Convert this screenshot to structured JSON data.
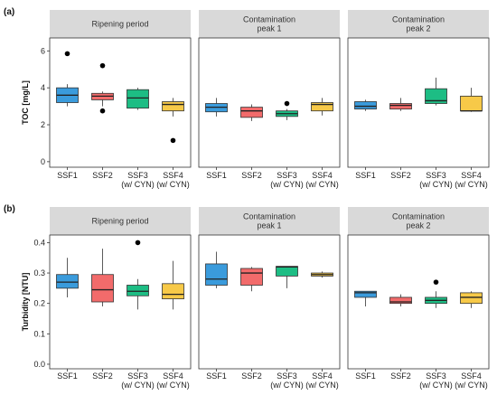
{
  "colors": {
    "SSF1": "#3a9bdc",
    "SSF2": "#f26b6b",
    "SSF3": "#1dbd84",
    "SSF4": "#f7c948",
    "strip": "#d9d9d9"
  },
  "chart_data": [
    {
      "type": "boxplot",
      "tag": "(a)",
      "ylabel": "TOC [mg/L]",
      "ylim": [
        -0.3,
        6.7
      ],
      "yticks": [
        "0",
        "2",
        "4",
        "6"
      ],
      "categories": [
        [
          "SSF1"
        ],
        [
          "SSF2"
        ],
        [
          "SSF3",
          "(w/ CYN)"
        ],
        [
          "SSF4",
          "(w/ CYN)"
        ]
      ],
      "facets": [
        {
          "title": [
            "Ripening period"
          ],
          "boxes": [
            {
              "whislo": 3.0,
              "q1": 3.2,
              "med": 3.6,
              "q3": 4.0,
              "whishi": 4.2,
              "fliers": [
                5.85
              ]
            },
            {
              "whislo": 3.0,
              "q1": 3.35,
              "med": 3.55,
              "q3": 3.7,
              "whishi": 3.8,
              "fliers": [
                5.2,
                2.75
              ]
            },
            {
              "whislo": 2.8,
              "q1": 2.9,
              "med": 3.45,
              "q3": 3.9,
              "whishi": 4.0,
              "fliers": []
            },
            {
              "whislo": 2.45,
              "q1": 2.75,
              "med": 3.1,
              "q3": 3.25,
              "whishi": 3.45,
              "fliers": [
                1.15
              ]
            }
          ]
        },
        {
          "title": [
            "Contamination",
            "peak 1"
          ],
          "boxes": [
            {
              "whislo": 2.45,
              "q1": 2.7,
              "med": 2.95,
              "q3": 3.15,
              "whishi": 3.45,
              "fliers": []
            },
            {
              "whislo": 2.2,
              "q1": 2.4,
              "med": 2.75,
              "q3": 2.95,
              "whishi": 3.1,
              "fliers": []
            },
            {
              "whislo": 2.25,
              "q1": 2.45,
              "med": 2.6,
              "q3": 2.75,
              "whishi": 2.85,
              "fliers": [
                3.15
              ]
            },
            {
              "whislo": 2.5,
              "q1": 2.75,
              "med": 3.1,
              "q3": 3.2,
              "whishi": 3.45,
              "fliers": []
            }
          ]
        },
        {
          "title": [
            "Contamination",
            "peak 2"
          ],
          "boxes": [
            {
              "whislo": 2.75,
              "q1": 2.85,
              "med": 3.0,
              "q3": 3.25,
              "whishi": 3.35,
              "fliers": []
            },
            {
              "whislo": 2.75,
              "q1": 2.85,
              "med": 3.05,
              "q3": 3.15,
              "whishi": 3.45,
              "fliers": []
            },
            {
              "whislo": 3.05,
              "q1": 3.15,
              "med": 3.3,
              "q3": 3.95,
              "whishi": 4.55,
              "fliers": []
            },
            {
              "whislo": 2.7,
              "q1": 2.75,
              "med": 2.75,
              "q3": 3.55,
              "whishi": 4.0,
              "fliers": []
            }
          ]
        }
      ]
    },
    {
      "type": "boxplot",
      "tag": "(b)",
      "ylabel": "Turbidity [NTU]",
      "ylim": [
        -0.015,
        0.425
      ],
      "yticks": [
        "0.0",
        "0.1",
        "0.2",
        "0.3",
        "0.4"
      ],
      "categories": [
        [
          "SSF1"
        ],
        [
          "SSF2"
        ],
        [
          "SSF3",
          "(w/ CYN)"
        ],
        [
          "SSF4",
          "(w/ CYN)"
        ]
      ],
      "facets": [
        {
          "title": [
            "Ripening period"
          ],
          "boxes": [
            {
              "whislo": 0.22,
              "q1": 0.25,
              "med": 0.27,
              "q3": 0.295,
              "whishi": 0.35,
              "fliers": []
            },
            {
              "whislo": 0.19,
              "q1": 0.205,
              "med": 0.245,
              "q3": 0.295,
              "whishi": 0.38,
              "fliers": []
            },
            {
              "whislo": 0.18,
              "q1": 0.225,
              "med": 0.24,
              "q3": 0.26,
              "whishi": 0.28,
              "fliers": [
                0.4
              ]
            },
            {
              "whislo": 0.18,
              "q1": 0.215,
              "med": 0.23,
              "q3": 0.265,
              "whishi": 0.34,
              "fliers": []
            }
          ]
        },
        {
          "title": [
            "Contamination",
            "peak 1"
          ],
          "boxes": [
            {
              "whislo": 0.25,
              "q1": 0.26,
              "med": 0.28,
              "q3": 0.33,
              "whishi": 0.37,
              "fliers": []
            },
            {
              "whislo": 0.24,
              "q1": 0.26,
              "med": 0.3,
              "q3": 0.315,
              "whishi": 0.32,
              "fliers": []
            },
            {
              "whislo": 0.25,
              "q1": 0.29,
              "med": 0.32,
              "q3": 0.322,
              "whishi": 0.322,
              "fliers": []
            },
            {
              "whislo": 0.285,
              "q1": 0.29,
              "med": 0.295,
              "q3": 0.3,
              "whishi": 0.305,
              "fliers": []
            }
          ]
        },
        {
          "title": [
            "Contamination",
            "peak 2"
          ],
          "boxes": [
            {
              "whislo": 0.19,
              "q1": 0.22,
              "med": 0.235,
              "q3": 0.24,
              "whishi": 0.24,
              "fliers": []
            },
            {
              "whislo": 0.19,
              "q1": 0.2,
              "med": 0.205,
              "q3": 0.22,
              "whishi": 0.23,
              "fliers": []
            },
            {
              "whislo": 0.185,
              "q1": 0.2,
              "med": 0.21,
              "q3": 0.22,
              "whishi": 0.24,
              "fliers": [
                0.27
              ]
            },
            {
              "whislo": 0.185,
              "q1": 0.2,
              "med": 0.22,
              "q3": 0.235,
              "whishi": 0.24,
              "fliers": []
            }
          ]
        }
      ]
    }
  ]
}
